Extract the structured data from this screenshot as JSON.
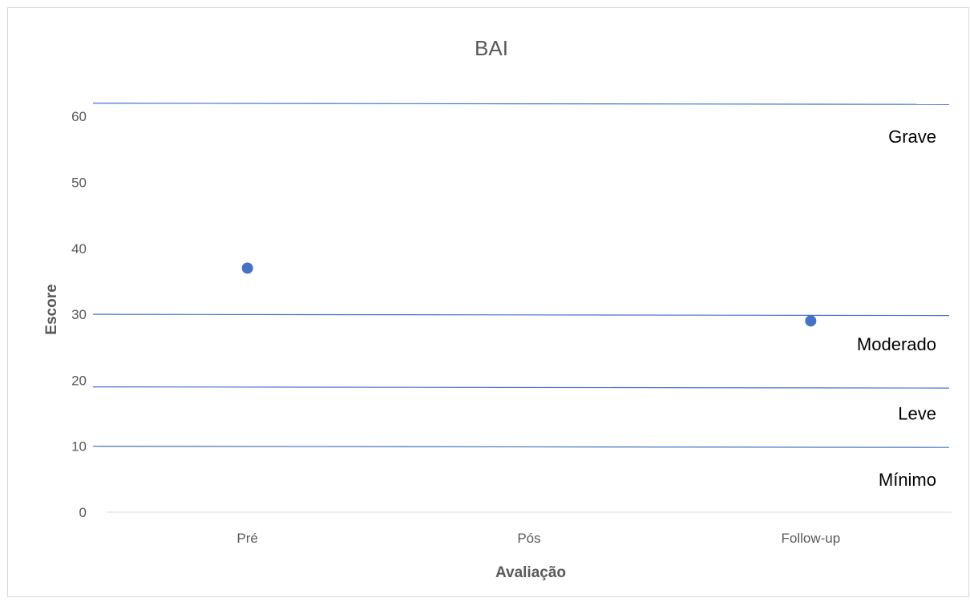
{
  "chart_data": {
    "type": "scatter",
    "title": "BAI",
    "xlabel": "Avaliação",
    "ylabel": "Escore",
    "categories": [
      "Pré",
      "Pós",
      "Follow-up"
    ],
    "ylim": [
      0,
      60
    ],
    "yticks": [
      "0",
      "10",
      "20",
      "30",
      "40",
      "50",
      "60"
    ],
    "grid": false,
    "series": [
      {
        "values": [
          37,
          null,
          29
        ],
        "color": "#4472C4"
      }
    ],
    "reference_lines": [
      {
        "y": 10,
        "color": "#4472C4"
      },
      {
        "y": 19,
        "color": "#4472C4"
      },
      {
        "y": 30,
        "color": "#4472C4"
      },
      {
        "y": 62,
        "color": "#4472C4"
      }
    ],
    "band_labels": [
      {
        "text": "Mínimo",
        "y": 5
      },
      {
        "text": "Leve",
        "y": 15
      },
      {
        "text": "Moderado",
        "y": 25.5
      },
      {
        "text": "Grave",
        "y": 57
      }
    ]
  }
}
